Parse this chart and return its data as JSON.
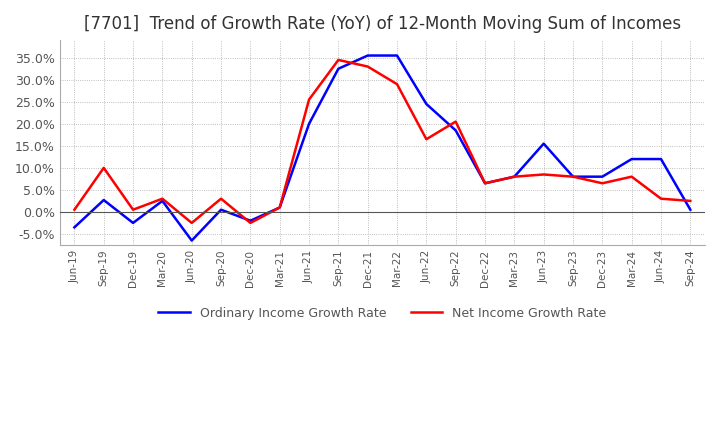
{
  "title": "[7701]  Trend of Growth Rate (YoY) of 12-Month Moving Sum of Incomes",
  "title_fontsize": 12,
  "background_color": "#ffffff",
  "plot_background_color": "#ffffff",
  "grid_color": "#aaaaaa",
  "ylim": [
    -0.075,
    0.39
  ],
  "yticks": [
    -0.05,
    0.0,
    0.05,
    0.1,
    0.15,
    0.2,
    0.25,
    0.3,
    0.35
  ],
  "legend_labels": [
    "Ordinary Income Growth Rate",
    "Net Income Growth Rate"
  ],
  "legend_colors": [
    "#0000ff",
    "#ff0000"
  ],
  "x_labels": [
    "Jun-19",
    "Sep-19",
    "Dec-19",
    "Mar-20",
    "Jun-20",
    "Sep-20",
    "Dec-20",
    "Mar-21",
    "Jun-21",
    "Sep-21",
    "Dec-21",
    "Mar-22",
    "Jun-22",
    "Sep-22",
    "Dec-22",
    "Mar-23",
    "Jun-23",
    "Sep-23",
    "Dec-23",
    "Mar-24",
    "Jun-24",
    "Sep-24"
  ],
  "ordinary_income": [
    -0.035,
    0.027,
    -0.025,
    0.025,
    -0.065,
    0.005,
    -0.02,
    0.01,
    0.2,
    0.325,
    0.355,
    0.355,
    0.245,
    0.185,
    0.065,
    0.08,
    0.155,
    0.08,
    0.08,
    0.12,
    0.12,
    0.005
  ],
  "net_income": [
    0.005,
    0.1,
    0.005,
    0.03,
    -0.025,
    0.03,
    -0.025,
    0.01,
    0.255,
    0.345,
    0.33,
    0.29,
    0.165,
    0.205,
    0.065,
    0.08,
    0.085,
    0.08,
    0.065,
    0.08,
    0.03,
    0.025
  ]
}
